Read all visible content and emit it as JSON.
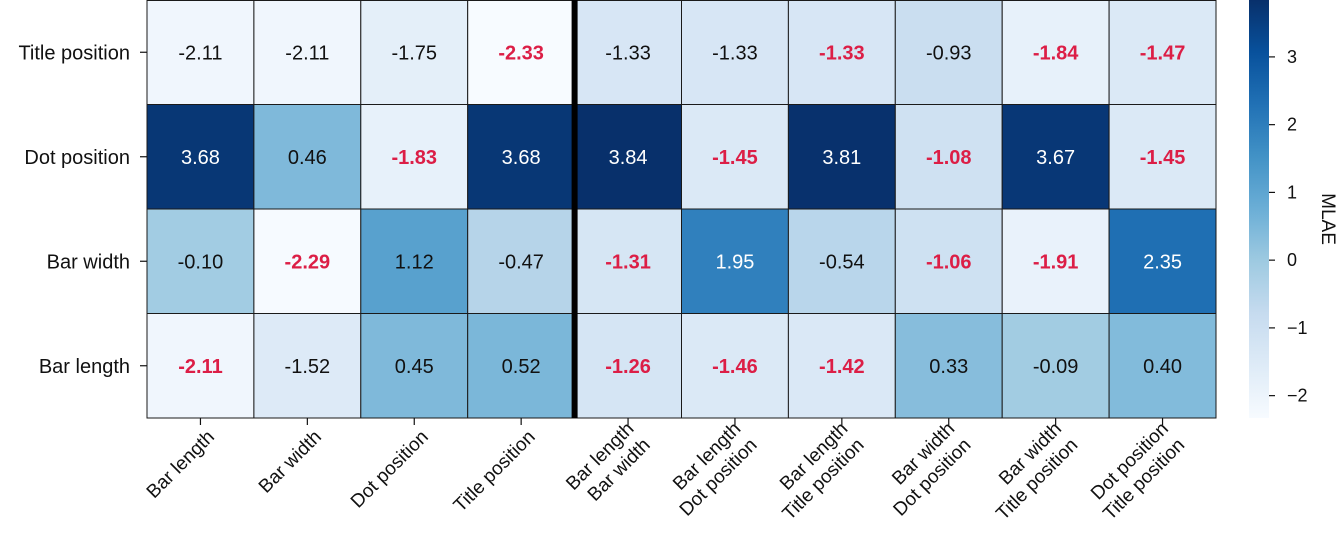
{
  "chart_data": {
    "type": "heatmap",
    "rows": [
      "Title position",
      "Dot position",
      "Bar width",
      "Bar length"
    ],
    "columns": [
      [
        "Bar length"
      ],
      [
        "Bar width"
      ],
      [
        "Dot position"
      ],
      [
        "Title position"
      ],
      [
        "Bar length",
        "Bar width"
      ],
      [
        "Bar length",
        "Dot position"
      ],
      [
        "Bar length",
        "Title position"
      ],
      [
        "Bar width",
        "Dot position"
      ],
      [
        "Bar width",
        "Title position"
      ],
      [
        "Dot position",
        "Title position"
      ]
    ],
    "values": [
      [
        -2.11,
        -2.11,
        -1.75,
        -2.33,
        -1.33,
        -1.33,
        -1.33,
        -0.93,
        -1.84,
        -1.47
      ],
      [
        3.68,
        0.46,
        -1.83,
        3.68,
        3.84,
        -1.45,
        3.81,
        -1.08,
        3.67,
        -1.45
      ],
      [
        -0.1,
        -2.29,
        1.12,
        -0.47,
        -1.31,
        1.95,
        -0.54,
        -1.06,
        -1.91,
        2.35
      ],
      [
        -2.11,
        -1.52,
        0.45,
        0.52,
        -1.26,
        -1.46,
        -1.42,
        0.33,
        -0.09,
        0.4
      ]
    ],
    "labels": [
      [
        "-2.11",
        "-2.11",
        "-1.75",
        "-2.33",
        "-1.33",
        "-1.33",
        "-1.33",
        "-0.93",
        "-1.84",
        "-1.47"
      ],
      [
        "3.68",
        "0.46",
        "-1.83",
        "3.68",
        "3.84",
        "-1.45",
        "3.81",
        "-1.08",
        "3.67",
        "-1.45"
      ],
      [
        "-0.10",
        "-2.29",
        "1.12",
        "-0.47",
        "-1.31",
        "1.95",
        "-0.54",
        "-1.06",
        "-1.91",
        "2.35"
      ],
      [
        "-2.11",
        "-1.52",
        "0.45",
        "0.52",
        "-1.26",
        "-1.46",
        "-1.42",
        "0.33",
        "-0.09",
        "0.40"
      ]
    ],
    "highlighted": [
      [
        false,
        false,
        false,
        true,
        false,
        false,
        true,
        false,
        true,
        true
      ],
      [
        false,
        false,
        true,
        false,
        false,
        true,
        false,
        true,
        false,
        true
      ],
      [
        false,
        true,
        false,
        false,
        true,
        false,
        false,
        true,
        true,
        false
      ],
      [
        true,
        false,
        false,
        false,
        true,
        true,
        true,
        false,
        false,
        false
      ]
    ],
    "highlight_color": "#dc1e46",
    "separator_after_column": 4,
    "colormap": "Blues",
    "colorbar": {
      "title": "MLAE",
      "range": [
        -2.33,
        3.84
      ],
      "ticks": [
        -2,
        -1,
        0,
        1,
        2,
        3
      ],
      "tick_labels": [
        "−2",
        "−1",
        "0",
        "1",
        "2",
        "3"
      ]
    }
  }
}
